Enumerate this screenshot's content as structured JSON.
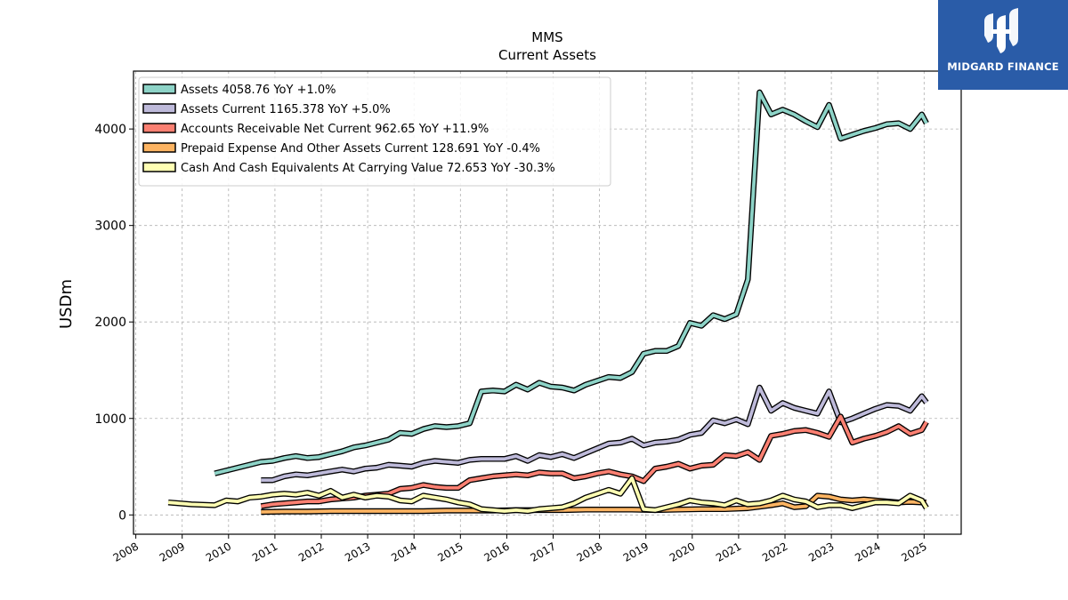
{
  "brand": {
    "name": "MIDGARD FINANCE",
    "logo_bg": "#2a5ca8"
  },
  "chart_data": {
    "type": "line",
    "title": "MMS",
    "subtitle": "Current  Assets",
    "ylabel": "USDm",
    "xlabel": "",
    "ylim": [
      -200,
      4600
    ],
    "xlim": [
      2007.95,
      2025.8
    ],
    "yticks": [
      0,
      1000,
      2000,
      3000,
      4000
    ],
    "xticks": [
      "2008",
      "2009",
      "2010",
      "2011",
      "2012",
      "2013",
      "2014",
      "2015",
      "2016",
      "2017",
      "2018",
      "2019",
      "2020",
      "2021",
      "2022",
      "2023",
      "2024",
      "2025"
    ],
    "grid": true,
    "legend_position": "top-left",
    "series": [
      {
        "name": "Assets  4058.76 YoY +1.0%",
        "color": "#8dd3c7",
        "x": [
          2009.7,
          2009.95,
          2010.2,
          2010.45,
          2010.7,
          2010.95,
          2011.2,
          2011.45,
          2011.7,
          2011.95,
          2012.2,
          2012.45,
          2012.7,
          2012.95,
          2013.2,
          2013.45,
          2013.7,
          2013.95,
          2014.2,
          2014.45,
          2014.7,
          2014.95,
          2015.2,
          2015.45,
          2015.7,
          2015.95,
          2016.2,
          2016.45,
          2016.7,
          2016.95,
          2017.2,
          2017.45,
          2017.7,
          2017.95,
          2018.2,
          2018.45,
          2018.7,
          2018.95,
          2019.2,
          2019.45,
          2019.7,
          2019.95,
          2020.2,
          2020.45,
          2020.7,
          2020.95,
          2021.2,
          2021.45,
          2021.7,
          2021.95,
          2022.2,
          2022.45,
          2022.7,
          2022.95,
          2023.2,
          2023.45,
          2023.7,
          2023.95,
          2024.2,
          2024.45,
          2024.7,
          2024.95,
          2025.05
        ],
        "values": [
          430,
          460,
          490,
          520,
          550,
          560,
          590,
          610,
          590,
          600,
          630,
          660,
          700,
          720,
          750,
          780,
          850,
          840,
          890,
          920,
          910,
          920,
          950,
          1280,
          1290,
          1280,
          1350,
          1300,
          1370,
          1330,
          1320,
          1290,
          1350,
          1390,
          1430,
          1420,
          1480,
          1670,
          1700,
          1700,
          1750,
          1990,
          1960,
          2070,
          2030,
          2080,
          2440,
          4380,
          4150,
          4200,
          4150,
          4080,
          4020,
          4250,
          3900,
          3940,
          3980,
          4010,
          4050,
          4060,
          4000,
          4150,
          4060
        ]
      },
      {
        "name": "Assets Current  1165.378 YoY +5.0%",
        "color": "#bebada",
        "x": [
          2010.7,
          2010.95,
          2011.2,
          2011.45,
          2011.7,
          2011.95,
          2012.2,
          2012.45,
          2012.7,
          2012.95,
          2013.2,
          2013.45,
          2013.7,
          2013.95,
          2014.2,
          2014.45,
          2014.7,
          2014.95,
          2015.2,
          2015.45,
          2015.7,
          2015.95,
          2016.2,
          2016.45,
          2016.7,
          2016.95,
          2017.2,
          2017.45,
          2017.7,
          2017.95,
          2018.2,
          2018.45,
          2018.7,
          2018.95,
          2019.2,
          2019.45,
          2019.7,
          2019.95,
          2020.2,
          2020.45,
          2020.7,
          2020.95,
          2021.2,
          2021.45,
          2021.7,
          2021.95,
          2022.2,
          2022.45,
          2022.7,
          2022.95,
          2023.2,
          2023.45,
          2023.7,
          2023.95,
          2024.2,
          2024.45,
          2024.7,
          2024.95,
          2025.05
        ],
        "values": [
          360,
          360,
          400,
          420,
          410,
          430,
          450,
          470,
          450,
          480,
          490,
          520,
          510,
          500,
          540,
          560,
          550,
          540,
          570,
          580,
          580,
          580,
          610,
          560,
          620,
          600,
          630,
          590,
          640,
          690,
          740,
          750,
          790,
          720,
          750,
          760,
          780,
          830,
          850,
          980,
          950,
          990,
          940,
          1320,
          1080,
          1160,
          1110,
          1080,
          1050,
          1280,
          960,
          1000,
          1050,
          1100,
          1140,
          1130,
          1080,
          1230,
          1165
        ]
      },
      {
        "name": "Accounts Receivable Net Current  962.65 YoY +11.9%",
        "color": "#fb8072",
        "x": [
          2010.7,
          2010.95,
          2011.2,
          2011.45,
          2011.7,
          2011.95,
          2012.2,
          2012.45,
          2012.7,
          2012.95,
          2013.2,
          2013.45,
          2013.7,
          2013.95,
          2014.2,
          2014.45,
          2014.7,
          2014.95,
          2015.2,
          2015.45,
          2015.7,
          2015.95,
          2016.2,
          2016.45,
          2016.7,
          2016.95,
          2017.2,
          2017.45,
          2017.7,
          2017.95,
          2018.2,
          2018.45,
          2018.7,
          2018.95,
          2019.2,
          2019.45,
          2019.7,
          2019.95,
          2020.2,
          2020.45,
          2020.7,
          2020.95,
          2021.2,
          2021.45,
          2021.7,
          2021.95,
          2022.2,
          2022.45,
          2022.7,
          2022.95,
          2023.2,
          2023.45,
          2023.7,
          2023.95,
          2024.2,
          2024.45,
          2024.7,
          2024.95,
          2025.05
        ],
        "values": [
          90,
          110,
          120,
          130,
          140,
          140,
          160,
          170,
          180,
          200,
          210,
          220,
          270,
          280,
          310,
          290,
          280,
          280,
          360,
          380,
          400,
          410,
          420,
          410,
          440,
          430,
          430,
          380,
          400,
          430,
          450,
          420,
          400,
          350,
          480,
          500,
          530,
          480,
          510,
          520,
          620,
          610,
          650,
          570,
          820,
          840,
          870,
          880,
          850,
          810,
          1020,
          750,
          790,
          820,
          860,
          920,
          840,
          880,
          963
        ]
      },
      {
        "name": "Prepaid Expense And Other Assets Current  128.691 YoY -0.4%",
        "color": "#fdb462",
        "x": [
          2010.7,
          2011.2,
          2011.7,
          2012.2,
          2012.7,
          2013.2,
          2013.7,
          2014.2,
          2014.7,
          2015.2,
          2015.7,
          2016.2,
          2016.7,
          2017.2,
          2017.7,
          2018.2,
          2018.7,
          2019.2,
          2019.7,
          2020.2,
          2020.7,
          2021.2,
          2021.7,
          2021.95,
          2022.2,
          2022.45,
          2022.7,
          2022.95,
          2023.2,
          2023.45,
          2023.7,
          2023.95,
          2024.2,
          2024.45,
          2024.7,
          2024.95,
          2025.05
        ],
        "values": [
          30,
          35,
          35,
          40,
          40,
          40,
          40,
          40,
          45,
          45,
          45,
          50,
          50,
          50,
          55,
          55,
          55,
          50,
          55,
          60,
          60,
          70,
          100,
          120,
          80,
          90,
          200,
          190,
          160,
          150,
          160,
          150,
          140,
          130,
          135,
          130,
          129
        ]
      },
      {
        "name": "Cash And Cash Equivalents At Carrying Value  72.653 YoY -30.3%",
        "color": "#ffffb3",
        "x": [
          2008.7,
          2009.2,
          2009.7,
          2009.95,
          2010.2,
          2010.45,
          2010.7,
          2010.95,
          2011.2,
          2011.45,
          2011.7,
          2011.95,
          2012.2,
          2012.45,
          2012.7,
          2012.95,
          2013.2,
          2013.45,
          2013.7,
          2013.95,
          2014.2,
          2014.45,
          2014.7,
          2014.95,
          2015.2,
          2015.45,
          2015.7,
          2015.95,
          2016.2,
          2016.45,
          2016.7,
          2016.95,
          2017.2,
          2017.45,
          2017.7,
          2017.95,
          2018.2,
          2018.45,
          2018.7,
          2018.95,
          2019.2,
          2019.45,
          2019.7,
          2019.95,
          2020.2,
          2020.45,
          2020.7,
          2020.95,
          2021.2,
          2021.45,
          2021.7,
          2021.95,
          2022.2,
          2022.45,
          2022.7,
          2022.95,
          2023.2,
          2023.45,
          2023.7,
          2023.95,
          2024.2,
          2024.45,
          2024.7,
          2024.95,
          2025.05
        ],
        "values": [
          130,
          110,
          100,
          150,
          140,
          180,
          190,
          210,
          220,
          210,
          230,
          200,
          250,
          180,
          210,
          180,
          200,
          190,
          150,
          140,
          200,
          180,
          160,
          130,
          110,
          60,
          50,
          40,
          50,
          40,
          60,
          70,
          80,
          120,
          180,
          220,
          260,
          220,
          380,
          60,
          50,
          80,
          110,
          150,
          130,
          120,
          100,
          150,
          110,
          120,
          150,
          200,
          160,
          140,
          80,
          100,
          100,
          70,
          100,
          130,
          130,
          120,
          200,
          150,
          73
        ]
      }
    ]
  }
}
